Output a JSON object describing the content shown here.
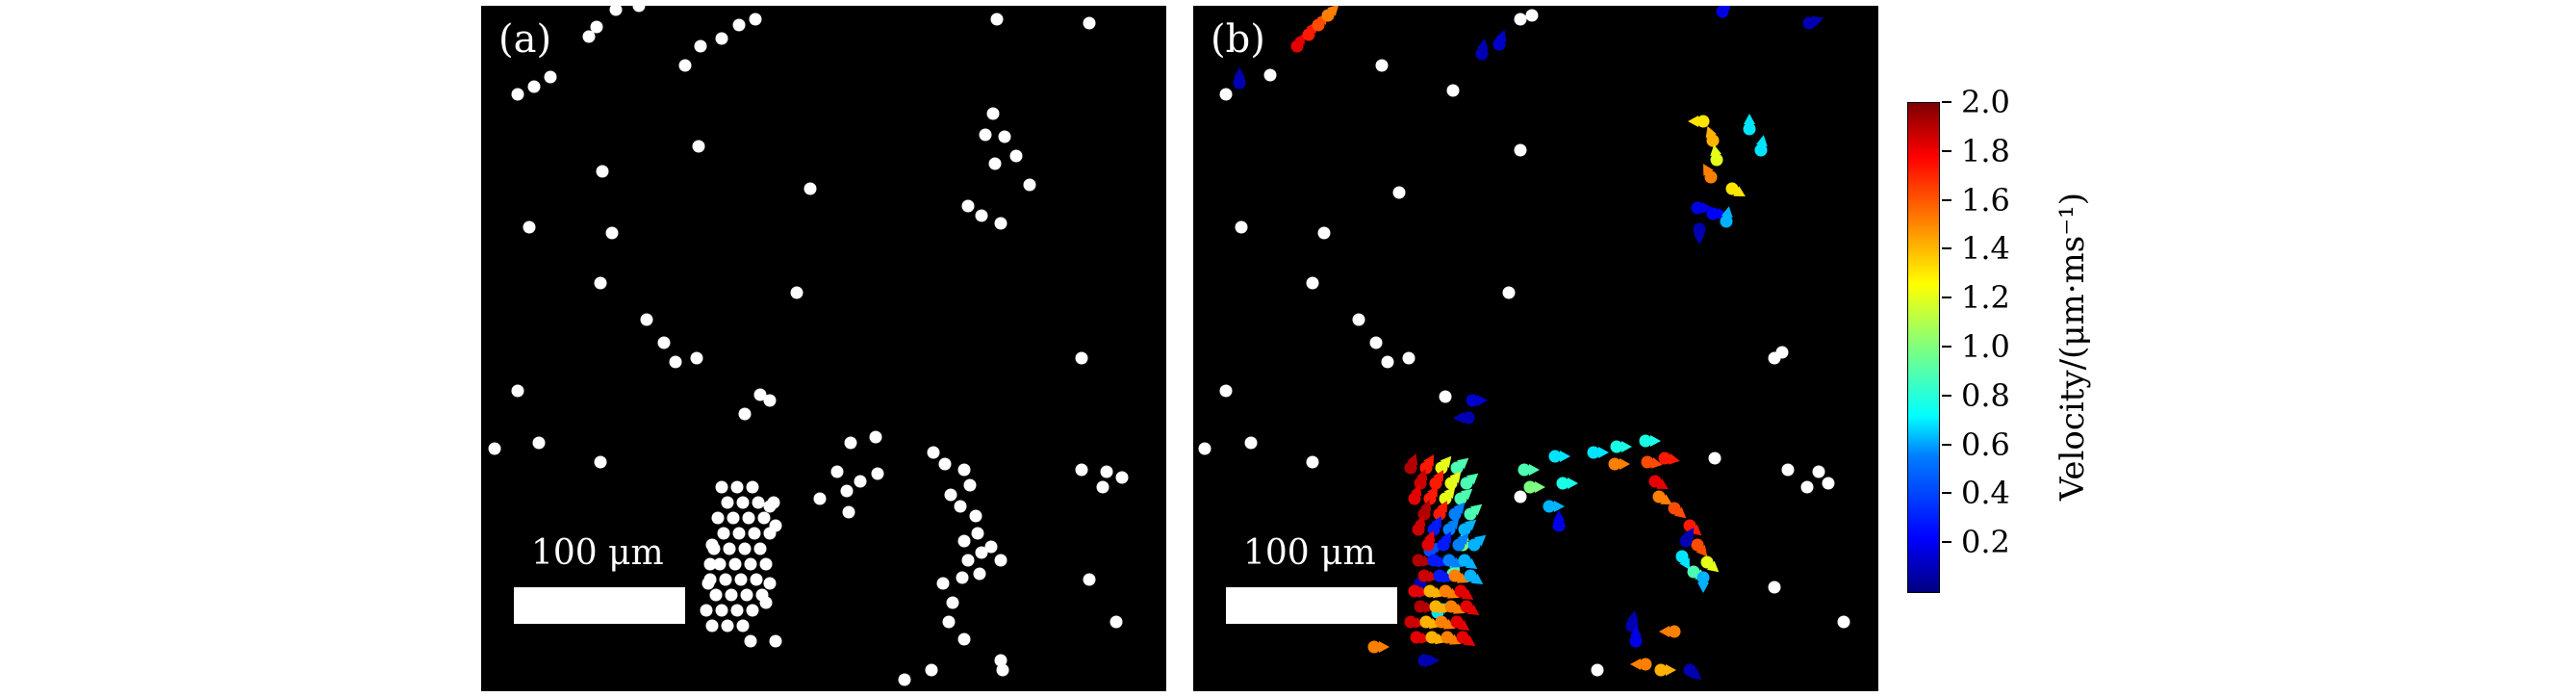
{
  "panel_a": {
    "label": "(a)",
    "scale_text": "100 μm"
  },
  "panel_b": {
    "label": "(b)",
    "scale_text": "100 μm"
  },
  "colorbar": {
    "label": "Velocity/(μm·ms⁻¹)",
    "min": 0.0,
    "max": 2.0,
    "ticks": [
      "0.2",
      "0.4",
      "0.6",
      "0.8",
      "1.0",
      "1.2",
      "1.4",
      "1.6",
      "1.8",
      "2.0"
    ],
    "colormap": [
      "#00007f",
      "#0000ff",
      "#007fff",
      "#00ffff",
      "#7fff7f",
      "#ffff00",
      "#ff7f00",
      "#ff0000",
      "#7f0000"
    ]
  },
  "colors": {
    "background": "#000000",
    "particle": "#ffffff"
  }
}
